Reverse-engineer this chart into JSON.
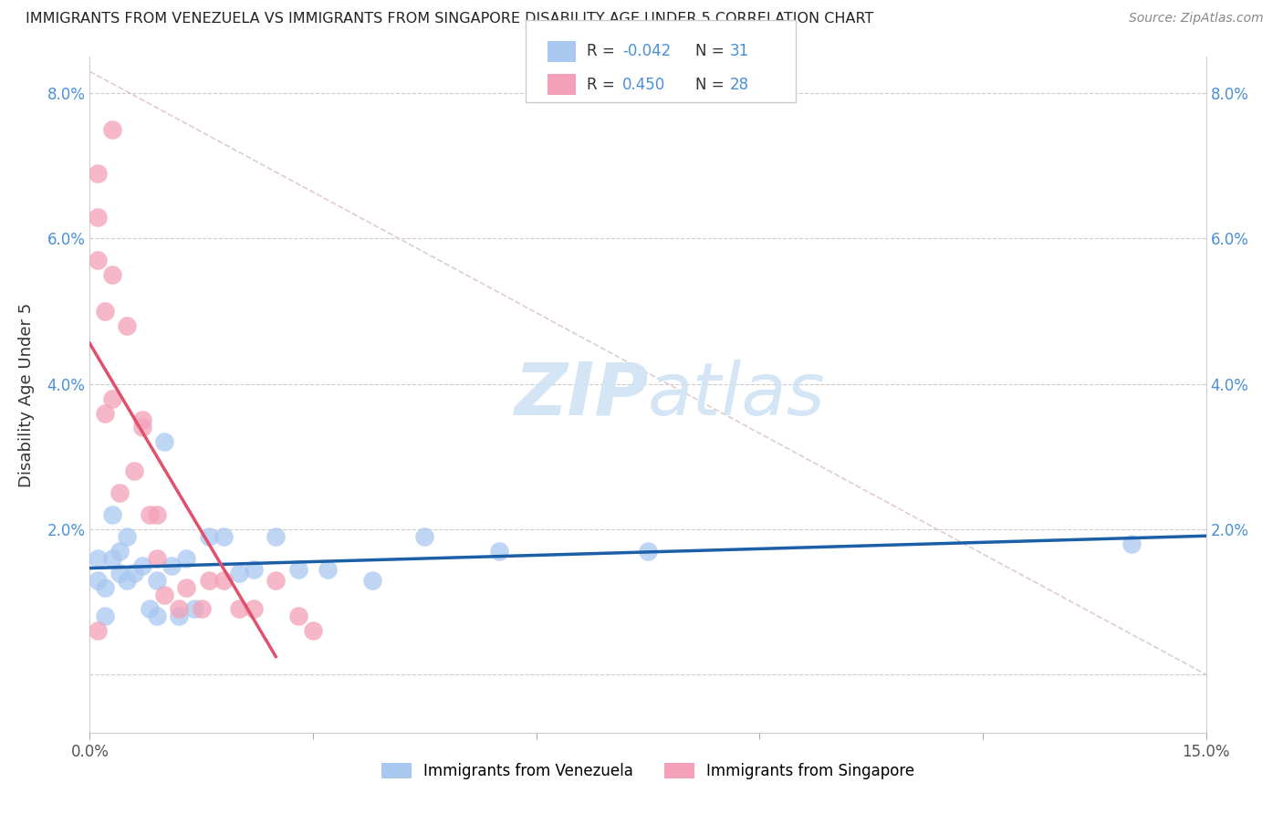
{
  "title": "IMMIGRANTS FROM VENEZUELA VS IMMIGRANTS FROM SINGAPORE DISABILITY AGE UNDER 5 CORRELATION CHART",
  "source": "Source: ZipAtlas.com",
  "ylabel": "Disability Age Under 5",
  "legend_label1": "Immigrants from Venezuela",
  "legend_label2": "Immigrants from Singapore",
  "color_blue": "#a8c8f0",
  "color_pink": "#f4a0b8",
  "line_color_blue": "#1a5fa8",
  "line_color_pink": "#e0506a",
  "diag_color": "#d8c0c0",
  "watermark_color": "#d0e4f4",
  "blue_x": [
    0.001,
    0.001,
    0.002,
    0.002,
    0.003,
    0.003,
    0.004,
    0.004,
    0.005,
    0.005,
    0.006,
    0.007,
    0.008,
    0.009,
    0.009,
    0.01,
    0.011,
    0.012,
    0.013,
    0.014,
    0.016,
    0.018,
    0.02,
    0.022,
    0.025,
    0.028,
    0.032,
    0.038,
    0.045,
    0.055,
    0.075,
    0.14
  ],
  "blue_y": [
    0.013,
    0.016,
    0.012,
    0.008,
    0.016,
    0.022,
    0.014,
    0.017,
    0.019,
    0.013,
    0.014,
    0.015,
    0.009,
    0.008,
    0.013,
    0.032,
    0.015,
    0.008,
    0.016,
    0.009,
    0.019,
    0.019,
    0.014,
    0.0145,
    0.019,
    0.0145,
    0.0145,
    0.013,
    0.019,
    0.017,
    0.017,
    0.018
  ],
  "pink_x": [
    0.001,
    0.001,
    0.001,
    0.001,
    0.002,
    0.002,
    0.003,
    0.003,
    0.003,
    0.004,
    0.005,
    0.006,
    0.007,
    0.007,
    0.008,
    0.009,
    0.009,
    0.01,
    0.012,
    0.013,
    0.015,
    0.016,
    0.018,
    0.02,
    0.022,
    0.025,
    0.028,
    0.03
  ],
  "pink_y": [
    0.006,
    0.057,
    0.063,
    0.069,
    0.036,
    0.05,
    0.038,
    0.055,
    0.075,
    0.025,
    0.048,
    0.028,
    0.034,
    0.035,
    0.022,
    0.016,
    0.022,
    0.011,
    0.009,
    0.012,
    0.009,
    0.013,
    0.013,
    0.009,
    0.009,
    0.013,
    0.008,
    0.006
  ],
  "x_min": 0.0,
  "x_max": 0.15,
  "y_min": -0.008,
  "y_max": 0.085,
  "x_ticks": [
    0.0,
    0.03,
    0.06,
    0.09,
    0.12,
    0.15
  ],
  "y_ticks": [
    0.0,
    0.02,
    0.04,
    0.06,
    0.08
  ],
  "y_tick_labels": [
    "",
    "2.0%",
    "4.0%",
    "6.0%",
    "8.0%"
  ],
  "x_tick_labels": [
    "0.0%",
    "",
    "",
    "",
    "",
    "15.0%"
  ],
  "grid_color": "#cccccc",
  "spine_color": "#cccccc"
}
